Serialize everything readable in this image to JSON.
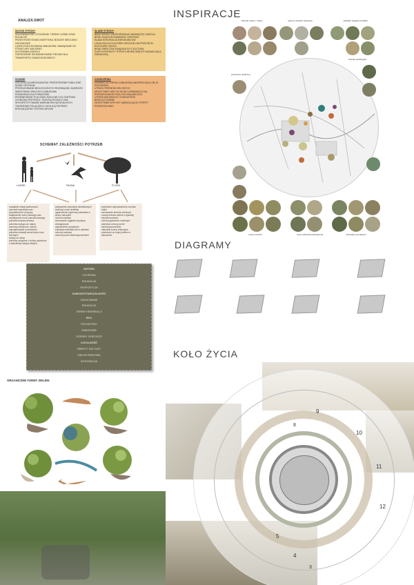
{
  "titles": {
    "inspiracje": "INSPIRACJE",
    "diagramy": "DIAGRAMY",
    "kolo_zycia": "KOŁO ŻYCIA",
    "analiza_swot": "ANALIZA SWOT",
    "schemat": "SCHEMAT ZALEŻNOŚCI POTRZEB",
    "organiczne": "ORGANICZNE FORMY ZIELENI"
  },
  "swot": {
    "strengths": {
      "heading": "MOCNE STRONY",
      "items": [
        "KRAJOBRAZOWY OTOCZENIE: TERENY LEŚNE ORAZ ROLNICZE",
        "PRZESTRZEŃ STAWU MARTYNKA: BOGATE SIEDLISKO GATUNKOWE",
        "LUŹNO ROZLOKOWANA ZABUDOWA, NAWIĄZANIE DO STRUKTURY WIEJSKIEJ",
        "AUTONOMIA OSIEDLA",
        "OGRODZENIE SKOMUNIKOWANY REGION DLA TRANSPORTU SAMOCHODOWEGO"
      ]
    },
    "weaknesses": {
      "heading": "SŁABE STRONY",
      "items": [
        "BRAK SZKOŁY BEZPOŚREDNIO WEWNĄTRZ OSIEDLA",
        "BRAK ZAAKCENTOWANEGO CENTRUM",
        "SŁABA INTEGRACJA MIESZKAŃCÓW",
        "LOKALIZACJA PLACÓWKI SZKOLNEJ NA PRZEJŚCIU RUCHLIWEJ DROGI",
        "BRAK OBIEKTÓW ZWIĄZANYCH Z KULTURĄ",
        "DUŻE KONTRASTY STRUKTUROWE MIĘDZY SĄSIADUJĄCĄ ZABUDOWĄ"
      ]
    },
    "opportunities": {
      "heading": "SZANSE",
      "items": [
        "INTEGRACJA MIESZKAŃCÓW: PRZESTRZENIE PUBLICZNE",
        "NOWE CENTRUM",
        "PROPAGOWANIE BIOLOGICZNYCH ROZWIĄZAŃ: SĄSIEDZKI WARZYWNIK ORAZ EKO-ZABUDOWA",
        "KOMUNIKACJA AUTOBUSOWA",
        "PRZENIESIENIE PLACÓWKI SZKOLNEJ DO CENTRUM",
        "OCHRONA PRZYRODY: ŚCIEŻKA EDUKACYJNA",
        "WYKORZYSTYWANIE WARUNKÓW NATURALNYCH",
        "TWORZENIE POŁĄCZEŃ Z OKOLICĄ POPRZEZ ROZGAŁĘZIONY SYSTEM ZIELENI"
      ]
    },
    "threats": {
      "heading": "ZAGROŻENIA",
      "items": [
        "DOMINACJA TERENU ZABUDOWĄ NIEWPISUJĄCĄ SIĘ W KRAJOBRAZ",
        "UTRATA TERENÓW ZIELONYCH",
        "NEGATYWNY WPŁYW SILNEJ URBANIZACJI NA RÓŻNORODNOŚĆ BIOLOGICZNĄ MIEJSCA",
        "UTRATA WIEJSKIEGO CHARAKTERU",
        "BRAK AUTONOMII",
        "NEGATYWNE WPŁYWY SĄSIADUJĄCEJ STREFY PRZEMYSŁOWEJ"
      ]
    }
  },
  "needs": {
    "labels": [
      "LUDZIE",
      "FAUNA",
      "FLORA"
    ],
    "people": [
      "rozwijanie relacji społecznych, poczucie wspólnoty oraz przynależności do grupy",
      "zwiększenie ruchu pieszego oraz zmniejszenie ruchu samochodowego",
      "potrzeba bezpieczeństwa",
      "potrzeba dostępu do natury",
      "potrzeby estetyczne: dobrze zaprojektowane przestrzenie",
      "potrzeba edukacji wśród dzieci oraz dorosłych",
      "dostęp do usług",
      "potrzeby związane z kulturą wyłonione z wieloletniej tradycji miejsca"
    ],
    "fauna": [
      "polepszenie warunków siedliskowych zwierząt: nowe siedliska",
      "ograniczenie ingerencji człowieka w tereny naturalne",
      "ochrona siedlisk",
      "zachowanie ciągłości korytarzy ekologicznych",
      "zapewnienie pożywienia",
      "edukacja mieszkańców w zakresie ochrony zwierząt",
      "ochrona przed zanieczyszczeniem"
    ],
    "flora": [
      "przestrzeń odpowiednia do wzrostu roślin",
      "zachowanie terenów zielonych",
      "rozwój terenów zieleni o wysokiej bioróżnorodności",
      "ochrona gatunków rodzimych",
      "potrzeba ochrony przed zanieczyszczeniami",
      "naturalne tereny retencyjne",
      "przestrzeń do bujnej zieleni w zabudowie"
    ]
  },
  "green_box": {
    "items": [
      "NATURA",
      "OCHRONA",
      "EDUKACJA",
      "EKSPOZYCJA",
      "SAMOWYSTARCZALNOŚĆ",
      "UZDATNIANIE",
      "EDUKACJA",
      "TERENY REKREACJI",
      "EKO",
      "ROLNICTWO",
      "ZABUDOWA",
      "OGRODY DZIECIĘCE",
      "LOKALNOŚĆ",
      "OBIEKTY KULTURY",
      "ZIELEŃ PARKOWA",
      "INTEGRACJA"
    ]
  },
  "inspiration_notes": [
    "zbiornik wodny z zieleń",
    "ogród w obrębie zabudowy",
    "siedlisko wiejskie przykład",
    "przestrzeń publiczna",
    "tereny rolnicze",
    "nowa zabudowa ekologiczna",
    "rekreacja nad stawem",
    "ścieżka edukacyjna"
  ],
  "clock_numbers": [
    "1",
    "2",
    "3",
    "4",
    "5",
    "6",
    "7",
    "8",
    "9",
    "10",
    "11",
    "12"
  ],
  "colors": {
    "swot_yellow": "#fbeab5",
    "swot_orange": "#f1cf8c",
    "swot_grey": "#e7e6e4",
    "swot_peach": "#f1b882",
    "green_box": "#6c6c57",
    "note": "#f4ece2",
    "purple_dot": "#7b4a74",
    "teal_dot": "#2f7f7a"
  }
}
